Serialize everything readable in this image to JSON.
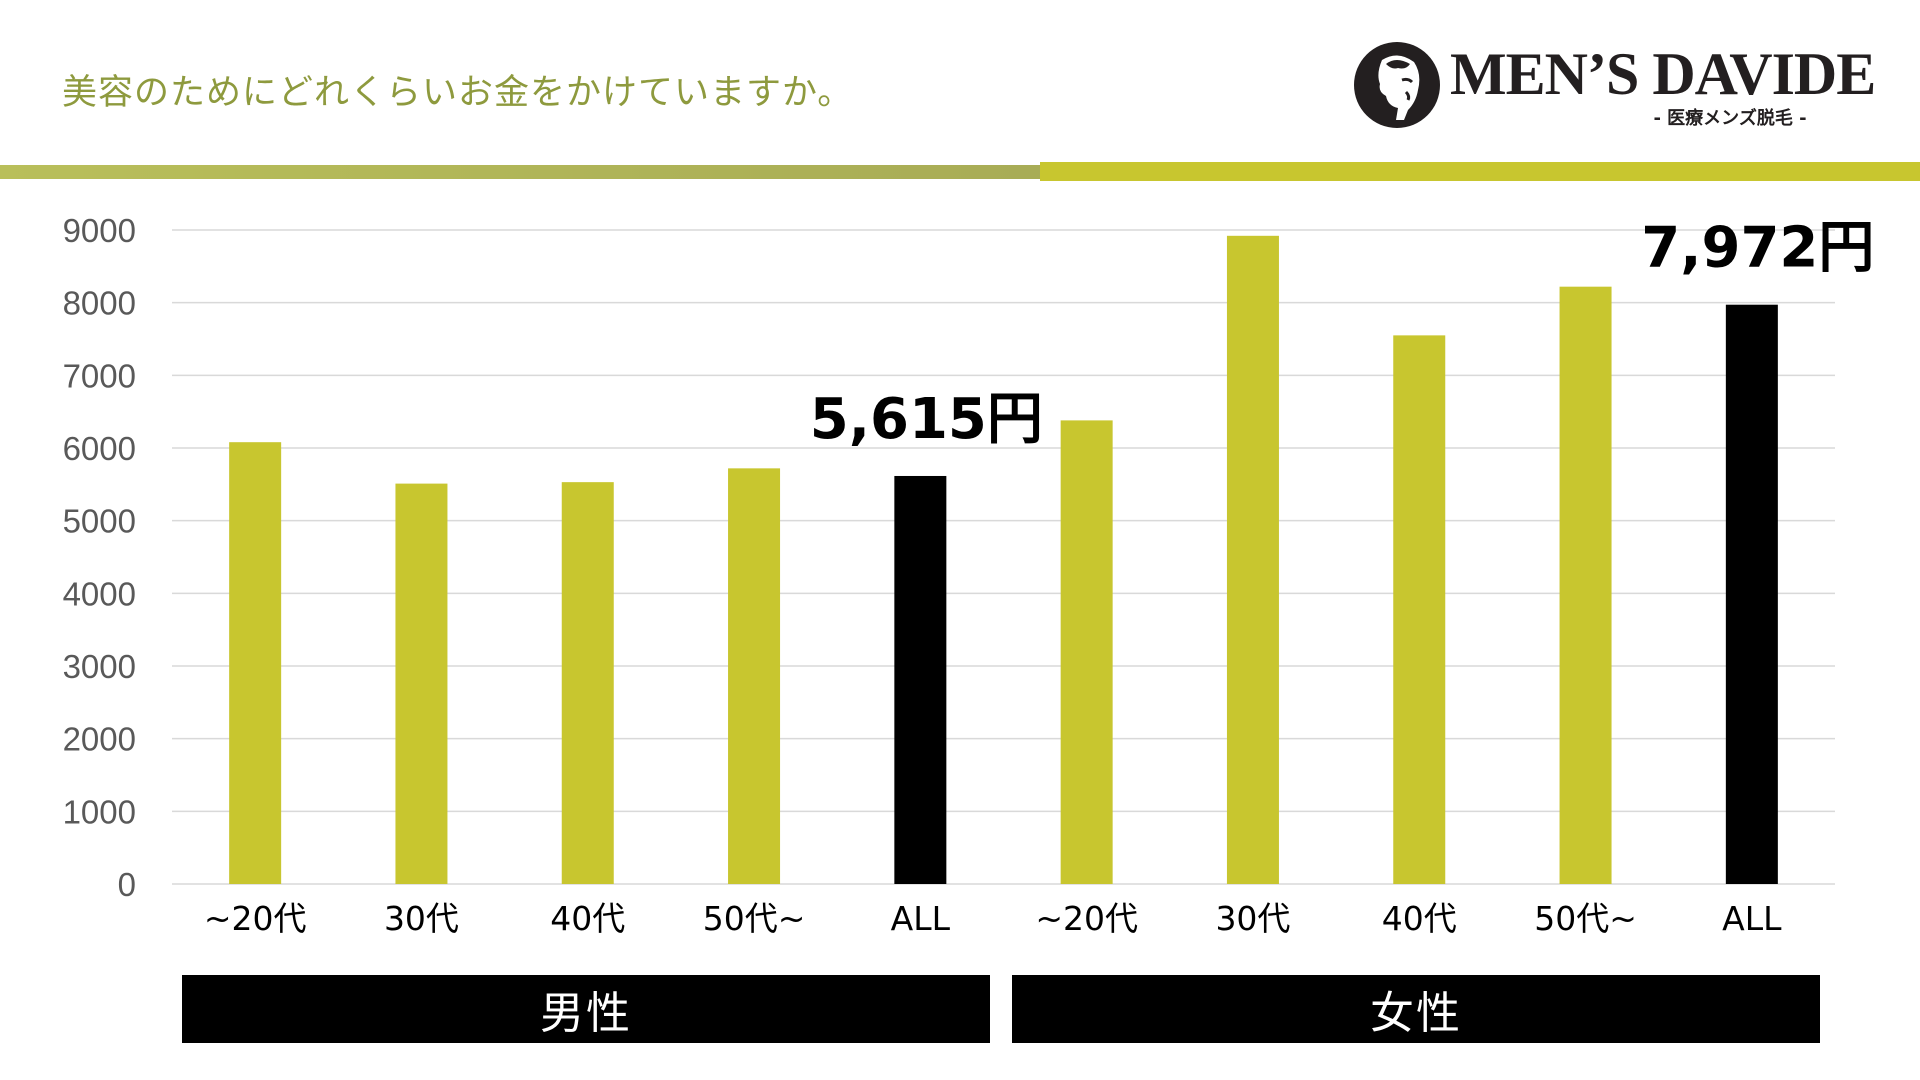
{
  "header": {
    "question": "美容のためにどれくらいお金をかけていますか。"
  },
  "logo": {
    "name": "MEN’S DAVIDE",
    "tagline": "- 医療メンズ脱毛 -"
  },
  "colors": {
    "bar": "#c8c62f",
    "highlight": "#000000",
    "title": "#8e9a3e",
    "grid": "#d9d9d9",
    "axis_text": "#595959"
  },
  "chart_data": {
    "type": "bar",
    "categories": [
      "~20代",
      "30代",
      "40代",
      "50代~",
      "ALL",
      "~20代",
      "30代",
      "40代",
      "50代~",
      "ALL"
    ],
    "values": [
      6080,
      5510,
      5530,
      5720,
      5615,
      6380,
      8920,
      7550,
      8220,
      7972
    ],
    "highlight_indices": [
      4,
      9
    ],
    "groups": [
      {
        "label": "男性",
        "indices": [
          0,
          1,
          2,
          3,
          4
        ]
      },
      {
        "label": "女性",
        "indices": [
          5,
          6,
          7,
          8,
          9
        ]
      }
    ],
    "annotations": [
      {
        "index": 4,
        "text": "5,615円"
      },
      {
        "index": 9,
        "text": "7,972円"
      }
    ],
    "ylim": [
      0,
      9000
    ],
    "yticks": [
      0,
      1000,
      2000,
      3000,
      4000,
      5000,
      6000,
      7000,
      8000,
      9000
    ],
    "grid": true
  }
}
